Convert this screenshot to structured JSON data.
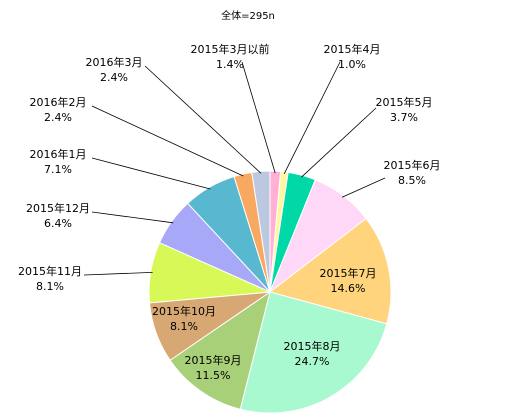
{
  "chart_data": {
    "type": "pie",
    "subtitle": "全体=295n",
    "start_angle_deg": 0,
    "direction": "clockwise",
    "slices": [
      {
        "label": "2015年3月以前",
        "value": 1.4,
        "value_label": "1.4%",
        "color": "#ffb0d4"
      },
      {
        "label": "2015年4月",
        "value": 1.0,
        "value_label": "1.0%",
        "color": "#fff8a0"
      },
      {
        "label": "2015年5月",
        "value": 3.7,
        "value_label": "3.7%",
        "color": "#00d8a8"
      },
      {
        "label": "2015年6月",
        "value": 8.5,
        "value_label": "8.5%",
        "color": "#ffd8f8"
      },
      {
        "label": "2015年7月",
        "value": 14.6,
        "value_label": "14.6%",
        "color": "#ffd47c"
      },
      {
        "label": "2015年8月",
        "value": 24.7,
        "value_label": "24.7%",
        "color": "#a8f8d0"
      },
      {
        "label": "2015年9月",
        "value": 11.5,
        "value_label": "11.5%",
        "color": "#a8d078"
      },
      {
        "label": "2015年10月",
        "value": 8.1,
        "value_label": "8.1%",
        "color": "#d8a874"
      },
      {
        "label": "2015年11月",
        "value": 8.1,
        "value_label": "8.1%",
        "color": "#d8f858"
      },
      {
        "label": "2015年12月",
        "value": 6.4,
        "value_label": "6.4%",
        "color": "#a8a8f8"
      },
      {
        "label": "2016年1月",
        "value": 7.1,
        "value_label": "7.1%",
        "color": "#58b8d0"
      },
      {
        "label": "2016年2月",
        "value": 2.4,
        "value_label": "2.4%",
        "color": "#f8a860"
      },
      {
        "label": "2016年3月",
        "value": 2.4,
        "value_label": "2.4%",
        "color": "#bcc8e0"
      }
    ]
  }
}
